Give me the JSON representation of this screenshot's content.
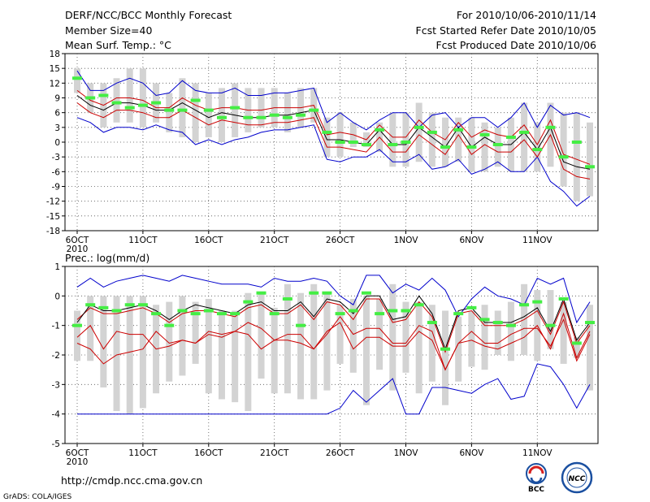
{
  "header": {
    "title": "DERF/NCC/BCC Monthly Forecast",
    "member_size": "Member Size=40",
    "variable": "Mean Surf. Temp.: °C",
    "period": "For 2010/10/06-2010/11/14",
    "start_date": "Fcst Started Refer Date 2010/10/05",
    "produced_date": "Fcst Produced Date 2010/10/06"
  },
  "footer": {
    "url": "http://cmdp.ncc.cma.gov.cn",
    "grads": "GrADS: COLA/IGES",
    "logo1_label": "BCC",
    "logo2_label": "NCC"
  },
  "colors": {
    "envelope": "#0000cc",
    "spread": "#cc0000",
    "mean": "#000000",
    "marker": "#44ee44",
    "bar": "#d3d3d3",
    "grid": "#555555"
  },
  "chart_data": [
    {
      "type": "line",
      "title": "Mean Surf. Temp.: °C",
      "x_tick_labels": [
        "6OCT",
        "11OCT",
        "16OCT",
        "21OCT",
        "26OCT",
        "1NOV",
        "6NOV",
        "11NOV"
      ],
      "x_year_label": "2010",
      "x": [
        1,
        2,
        3,
        4,
        5,
        6,
        7,
        8,
        9,
        10,
        11,
        12,
        13,
        14,
        15,
        16,
        17,
        18,
        19,
        20,
        21,
        22,
        23,
        24,
        25,
        26,
        27,
        28,
        29,
        30,
        31,
        32,
        33,
        34,
        35,
        36,
        37,
        38,
        39,
        40
      ],
      "ylim": [
        -18,
        18
      ],
      "yticks": [
        -18,
        -15,
        -12,
        -9,
        -6,
        -3,
        0,
        3,
        6,
        9,
        12,
        15,
        18
      ],
      "grid": true,
      "series": [
        {
          "name": "upper",
          "values": [
            14.5,
            10.5,
            10.5,
            12,
            13,
            12,
            9.5,
            10,
            12.5,
            10.5,
            10,
            10,
            11,
            9.5,
            9.5,
            10,
            10,
            10.5,
            11,
            4,
            6,
            4,
            2.5,
            4.5,
            6,
            6,
            3,
            5.5,
            6,
            3,
            5,
            5,
            3,
            5,
            8,
            3,
            7.5,
            5.5,
            6,
            5
          ]
        },
        {
          "name": "spread_high",
          "values": [
            10.5,
            8.5,
            7.5,
            9,
            9,
            8.5,
            7,
            7,
            9,
            7.5,
            6.5,
            7,
            7,
            6.5,
            6.5,
            7,
            7,
            7,
            7.5,
            1.5,
            2,
            1.5,
            0.5,
            3.5,
            1,
            1,
            4.5,
            2,
            0.5,
            4,
            1,
            2.5,
            1.5,
            1,
            3.5,
            -0.5,
            4.5,
            -2.5,
            -3.5,
            -4.5
          ]
        },
        {
          "name": "mean",
          "values": [
            9.5,
            7.5,
            6.5,
            8,
            8,
            7.5,
            6.5,
            6.5,
            8,
            6.5,
            5,
            6,
            5.5,
            5,
            5,
            5.5,
            5.5,
            6,
            6.5,
            0.5,
            0.5,
            0,
            -0.5,
            2.5,
            -0.5,
            -0.5,
            3,
            1,
            -1,
            3,
            -1,
            1,
            -0.5,
            -0.5,
            2,
            -1.5,
            3,
            -4,
            -5,
            -5.5
          ]
        },
        {
          "name": "spread_low",
          "values": [
            8,
            6,
            5,
            6.5,
            6.5,
            6,
            5,
            5,
            6.5,
            5,
            3.5,
            4.5,
            4,
            3.5,
            3.5,
            4,
            4,
            4.5,
            5,
            -1,
            -1,
            -1.5,
            -2,
            1,
            -2,
            -2,
            1.5,
            -0.5,
            -2.5,
            1.5,
            -2.5,
            -0.5,
            -2,
            -2,
            0.5,
            -3,
            1.5,
            -5.5,
            -7,
            -7.5
          ]
        },
        {
          "name": "lower",
          "values": [
            5,
            4,
            2,
            3,
            3,
            2.5,
            3.5,
            2.5,
            2,
            -0.5,
            0.5,
            -0.5,
            0.5,
            1,
            2,
            2.5,
            2.5,
            3,
            3.5,
            -3.5,
            -4,
            -3,
            -3,
            -1.5,
            -4,
            -4,
            -2.5,
            -5.5,
            -5,
            -3.5,
            -6.5,
            -5.5,
            -4,
            -6,
            -6,
            -3,
            -8,
            -10,
            -13,
            -11
          ]
        },
        {
          "name": "observed_marker",
          "values": [
            13,
            9,
            9.5,
            8,
            7,
            7.5,
            8,
            6.5,
            6.5,
            8.5,
            6.5,
            5,
            7,
            5,
            5,
            5.5,
            5,
            5.5,
            6.5,
            2,
            0,
            0,
            -0.5,
            2.5,
            -0.5,
            0,
            3,
            2,
            -1,
            2.5,
            -1,
            1.5,
            -0.5,
            1,
            2,
            -1.5,
            3,
            -3,
            0,
            -5
          ]
        },
        {
          "name": "bar_high",
          "values": [
            15,
            12,
            12,
            13,
            15,
            15,
            12,
            10,
            13,
            12,
            10,
            11,
            12,
            11,
            11,
            11,
            10,
            11,
            11,
            5,
            6,
            4,
            2,
            4,
            6,
            6,
            8,
            6,
            5,
            5,
            5,
            4,
            3,
            5,
            8,
            4,
            8,
            6,
            6,
            4
          ]
        },
        {
          "name": "bar_low",
          "values": [
            10,
            6,
            3,
            4,
            4,
            3,
            4,
            2,
            1,
            0,
            1,
            0,
            1,
            2,
            3,
            3,
            2,
            3,
            4,
            -3,
            -3,
            -1,
            -1,
            -2,
            -5,
            -5,
            -4,
            -5,
            -5,
            -4,
            -6,
            -6,
            -5,
            -6,
            -6,
            -6,
            -5,
            -9,
            -12,
            -11
          ]
        }
      ]
    },
    {
      "type": "line",
      "title": "Prec.: log(mm/d)",
      "x_tick_labels": [
        "6OCT",
        "11OCT",
        "16OCT",
        "21OCT",
        "26OCT",
        "1NOV",
        "6NOV",
        "11NOV"
      ],
      "x_year_label": "2010",
      "x": [
        1,
        2,
        3,
        4,
        5,
        6,
        7,
        8,
        9,
        10,
        11,
        12,
        13,
        14,
        15,
        16,
        17,
        18,
        19,
        20,
        21,
        22,
        23,
        24,
        25,
        26,
        27,
        28,
        29,
        30,
        31,
        32,
        33,
        34,
        35,
        36,
        37,
        38,
        39,
        40
      ],
      "ylim": [
        -5,
        1
      ],
      "yticks": [
        -5,
        -4,
        -3,
        -2,
        -1,
        0,
        1
      ],
      "grid": true,
      "series": [
        {
          "name": "upper",
          "values": [
            0.3,
            0.6,
            0.3,
            0.5,
            0.6,
            0.7,
            0.6,
            0.5,
            0.7,
            0.6,
            0.5,
            0.4,
            0.4,
            0.4,
            0.3,
            0.6,
            0.5,
            0.5,
            0.6,
            0.5,
            0,
            -0.3,
            0.7,
            0.7,
            0.1,
            0.4,
            0.2,
            0.6,
            0.2,
            -0.7,
            -0.1,
            0.3,
            0,
            -0.1,
            -0.3,
            0.6,
            0.4,
            0.6,
            -0.9,
            -0.2
          ]
        },
        {
          "name": "mean",
          "values": [
            -0.9,
            -0.3,
            -0.5,
            -0.5,
            -0.4,
            -0.3,
            -0.5,
            -0.8,
            -0.5,
            -0.3,
            -0.4,
            -0.5,
            -0.6,
            -0.3,
            -0.2,
            -0.5,
            -0.5,
            -0.2,
            -0.7,
            -0.1,
            -0.2,
            -0.6,
            0,
            0,
            -0.8,
            -0.7,
            0,
            -0.6,
            -1.8,
            -0.5,
            -0.4,
            -0.9,
            -0.9,
            -0.9,
            -0.7,
            -0.4,
            -1.2,
            -0.1,
            -1.5,
            -0.9
          ]
        },
        {
          "name": "spread_high",
          "values": [
            -0.8,
            -0.4,
            -0.6,
            -0.6,
            -0.5,
            -0.4,
            -0.6,
            -0.9,
            -0.6,
            -0.5,
            -0.5,
            -0.6,
            -0.7,
            -0.4,
            -0.3,
            -0.6,
            -0.6,
            -0.3,
            -0.8,
            -0.2,
            -0.3,
            -0.8,
            -0.1,
            -0.1,
            -0.9,
            -0.8,
            -0.2,
            -0.7,
            -1.9,
            -0.6,
            -0.5,
            -1,
            -1,
            -1,
            -0.8,
            -0.5,
            -1.3,
            -0.2,
            -1.6,
            -1
          ]
        },
        {
          "name": "spread_low",
          "values": [
            -1.4,
            -1,
            -1.8,
            -1.2,
            -1.3,
            -1.3,
            -1.8,
            -1.7,
            -1.5,
            -1.6,
            -1.3,
            -1.4,
            -1.2,
            -0.9,
            -1.1,
            -1.5,
            -1.5,
            -1.6,
            -1.8,
            -1.3,
            -0.7,
            -1.3,
            -1.1,
            -1.1,
            -1.6,
            -1.6,
            -1,
            -1.2,
            -2.5,
            -1.6,
            -1.5,
            -1.7,
            -1.8,
            -1.6,
            -1.4,
            -1,
            -1.8,
            -0.6,
            -2.1,
            -1.2
          ]
        },
        {
          "name": "spread_low2",
          "values": [
            -1.6,
            -1.8,
            -2.3,
            -2,
            -1.9,
            -1.8,
            -1.2,
            -1.6,
            -1.5,
            -1.6,
            -1.2,
            -1.3,
            -1.2,
            -1.3,
            -1.8,
            -1.5,
            -1.3,
            -1.3,
            -1.8,
            -1.2,
            -0.9,
            -1.8,
            -1.4,
            -1.4,
            -1.7,
            -1.7,
            -1.2,
            -1.5,
            -2.5,
            -1.6,
            -1.2,
            -1.6,
            -1.6,
            -1.3,
            -1.1,
            -1.1,
            -1.7,
            -0.8,
            -2.2,
            -1.3
          ]
        },
        {
          "name": "lower",
          "values": [
            -4,
            -4,
            -4,
            -4,
            -4,
            -4,
            -4,
            -4,
            -4,
            -4,
            -4,
            -4,
            -4,
            -4,
            -4,
            -4,
            -4,
            -4,
            -4,
            -4,
            -3.8,
            -3.2,
            -3.6,
            -3.2,
            -2.8,
            -4,
            -4,
            -3.1,
            -3.1,
            -3.2,
            -3.3,
            -3,
            -2.8,
            -3.5,
            -3.4,
            -2.3,
            -2.4,
            -3,
            -3.8,
            -3
          ]
        },
        {
          "name": "observed_marker",
          "values": [
            -1,
            -0.3,
            -0.4,
            -0.5,
            -0.3,
            -0.3,
            -0.6,
            -1,
            -0.5,
            -0.6,
            -0.5,
            -0.6,
            -0.6,
            -0.2,
            0.1,
            -0.6,
            -0.1,
            -1,
            0.1,
            0.1,
            -0.6,
            -0.5,
            0.1,
            -0.6,
            -0.5,
            -0.5,
            -0.3,
            -0.9,
            -1.8,
            -0.6,
            -0.4,
            -0.8,
            -0.9,
            -1,
            -0.3,
            -0.2,
            -1,
            -0.1,
            -1.6,
            -0.9
          ]
        },
        {
          "name": "bar_high",
          "values": [
            -0.5,
            0,
            0,
            0,
            0,
            0,
            -0.3,
            -0.2,
            0,
            -0.2,
            -0.1,
            -0.5,
            -0.5,
            0.1,
            0.1,
            -0.4,
            0.4,
            0.1,
            0.4,
            0.1,
            -0.3,
            -0.1,
            0,
            -0.1,
            0.4,
            -0.2,
            -0.2,
            -0.3,
            -0.5,
            -0.7,
            -0.5,
            -0.3,
            -0.5,
            -0.2,
            0.4,
            0.2,
            0.2,
            -0.2,
            -1.4,
            -0.3
          ]
        },
        {
          "name": "bar_low",
          "values": [
            -2.2,
            -2.2,
            -3.1,
            -3.9,
            -4,
            -3.8,
            -3.3,
            -2.9,
            -2.7,
            -2.3,
            -3.3,
            -3.5,
            -3.6,
            -3.9,
            -2.8,
            -3.3,
            -3.3,
            -3.5,
            -3.5,
            -3.2,
            -2.3,
            -2.6,
            -3.7,
            -2.5,
            -3.2,
            -2.6,
            -3.3,
            -2.9,
            -3.7,
            -2.9,
            -2.4,
            -2.5,
            -2,
            -2.2,
            -2,
            -2.2,
            -1.8,
            -2.3,
            -2.1,
            -3.2
          ]
        }
      ]
    }
  ]
}
